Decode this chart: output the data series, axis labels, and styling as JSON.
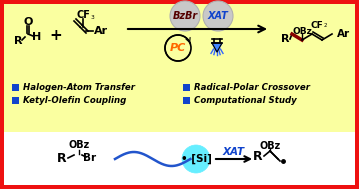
{
  "bg_yellow": "#FAFFA0",
  "bg_white": "#FFFFFF",
  "border_color": "#EE1111",
  "blue_square": "#1144CC",
  "orange_pc": "#FF6600",
  "blue_xat": "#1144CC",
  "dark_red_bond": "#880000",
  "fig_width": 3.59,
  "fig_height": 1.89,
  "dpi": 100,
  "legend_left": [
    "Halogen-Atom Transfer",
    "Ketyl-Olefin Coupling"
  ],
  "legend_right": [
    "Radical-Polar Crossover",
    "Computational Study"
  ]
}
